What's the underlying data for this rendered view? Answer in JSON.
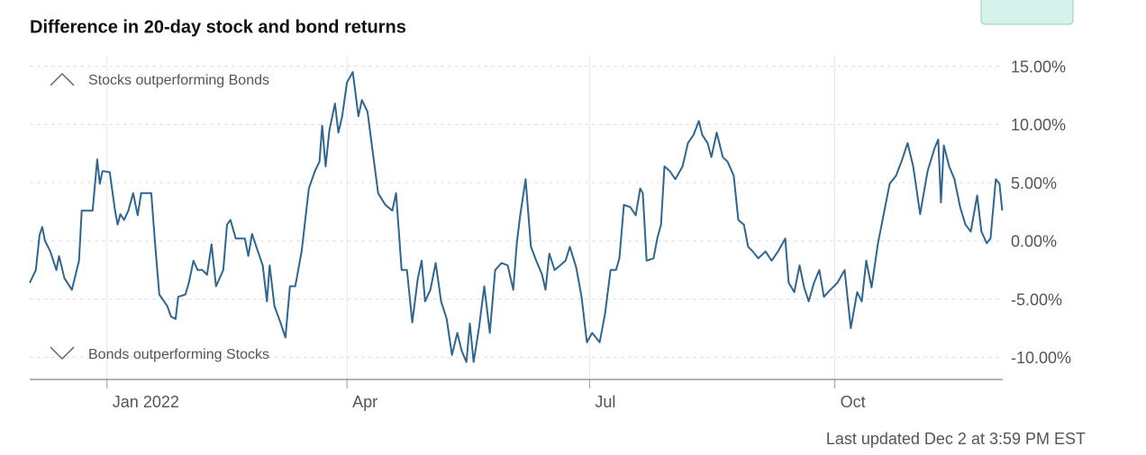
{
  "chart_data": {
    "type": "line",
    "title": "Difference in 20-day stock and bond returns",
    "annotations": [
      "Stocks outperforming Bonds",
      "Bonds outperforming Stocks"
    ],
    "footer": "Last updated Dec 2 at 3:59 PM EST",
    "xlim": [
      -29,
      336
    ],
    "xticks": [
      {
        "value": 0,
        "label": "Jan 2022"
      },
      {
        "value": 90,
        "label": "Apr"
      },
      {
        "value": 181,
        "label": "Jul"
      },
      {
        "value": 273,
        "label": "Oct"
      }
    ],
    "ylim": [
      -11.9,
      15.9
    ],
    "yticks": [
      {
        "value": -10,
        "label": "-10.00%"
      },
      {
        "value": -5,
        "label": "-5.00%"
      },
      {
        "value": 0,
        "label": "0.00%"
      },
      {
        "value": 5,
        "label": "5.00%"
      },
      {
        "value": 10,
        "label": "10.00%"
      },
      {
        "value": 15,
        "label": "15.00%"
      }
    ],
    "grid": true,
    "color": "#2f6690",
    "x": [
      -29,
      -26.7,
      -25.3,
      -24.3,
      -23.3,
      -21.3,
      -19,
      -18,
      -16,
      -13.2,
      -10.5,
      -9.5,
      -5.4,
      -3.7,
      -2.7,
      -1.7,
      1,
      3,
      4,
      5,
      6.4,
      8,
      9.8,
      11.5,
      12.8,
      16.6,
      18,
      19.6,
      22.6,
      24,
      25.7,
      26.7,
      29.4,
      30.7,
      32.4,
      34,
      35.8,
      37.5,
      39.2,
      40.9,
      43.6,
      45,
      46.3,
      48.3,
      51.7,
      53,
      54.4,
      56,
      58.4,
      60,
      61,
      62.8,
      65.2,
      66.9,
      68.6,
      70.6,
      73,
      75.7,
      78,
      79.7,
      80.7,
      82,
      83.4,
      85.5,
      86.8,
      88.2,
      90,
      92.2,
      94.3,
      95.6,
      97.7,
      99.7,
      101.7,
      104.4,
      107,
      108.4,
      110.5,
      112.5,
      114.5,
      116.6,
      118,
      119.3,
      121.3,
      123.3,
      125.3,
      127.4,
      129.4,
      131.4,
      133,
      134.8,
      136.1,
      137.5,
      139.5,
      141.5,
      143.6,
      145.6,
      148,
      150.3,
      152.4,
      153.7,
      155,
      157,
      159,
      161,
      163.2,
      164.5,
      165.9,
      167.9,
      170,
      172,
      173.6,
      176,
      178,
      180,
      182,
      184.8,
      186.8,
      188.9,
      190.9,
      192.2,
      193.9,
      196.3,
      198.3,
      200,
      201,
      202.4,
      205,
      206.4,
      207.8,
      209.1,
      211.1,
      213.2,
      215.9,
      217.9,
      220,
      222,
      223.3,
      225.3,
      226.7,
      228.7,
      231,
      232.8,
      235.1,
      236.8,
      238.9,
      240.5,
      242.2,
      244.3,
      247,
      249.3,
      251.7,
      254.4,
      255.7,
      257.8,
      259.8,
      261.5,
      263.2,
      265.2,
      267.2,
      268.9,
      271.3,
      274,
      276.7,
      279,
      281.4,
      283.1,
      284.8,
      286.8,
      289.2,
      290.9,
      293.6,
      296,
      298.3,
      300.3,
      302.4,
      305,
      307.8,
      310.5,
      311.8,
      312.8,
      313.9,
      315.9,
      317.9,
      320,
      322,
      324,
      326.4,
      328,
      330,
      331.4,
      333.4,
      334.8,
      335.8
    ],
    "values": [
      -3.6,
      -2.5,
      0.5,
      1.2,
      0,
      -0.9,
      -2.5,
      -1.3,
      -3.2,
      -4.2,
      -1.7,
      2.6,
      2.6,
      7,
      4.9,
      6,
      5.9,
      2.6,
      1.4,
      2.3,
      1.8,
      2.6,
      4.1,
      2.2,
      4.1,
      4.1,
      -0.2,
      -4.6,
      -5.6,
      -6.5,
      -6.7,
      -4.8,
      -4.6,
      -3.6,
      -1.7,
      -2.5,
      -2.5,
      -2.9,
      -0.3,
      -3.9,
      -2.5,
      1.4,
      1.8,
      0.2,
      0.2,
      -1.3,
      0.6,
      -0.5,
      -2.1,
      -5.2,
      -2.1,
      -5.6,
      -7.1,
      -8.3,
      -3.9,
      -3.9,
      -0.9,
      4.5,
      6,
      6.8,
      9.9,
      6.4,
      9.5,
      11.8,
      9.3,
      10.7,
      13.6,
      14.5,
      10.7,
      12.1,
      11.1,
      7.6,
      4.1,
      3.1,
      2.6,
      4.1,
      -2.5,
      -2.5,
      -7,
      -3.2,
      -1.7,
      -5.2,
      -4.2,
      -1.9,
      -5.2,
      -6.7,
      -9.8,
      -7.9,
      -9.4,
      -10.4,
      -7.1,
      -10.4,
      -7.5,
      -3.9,
      -7.9,
      -2.5,
      -1.9,
      -2.1,
      -4.2,
      -0.2,
      2.2,
      5.3,
      -0.5,
      -1.7,
      -2.9,
      -4.2,
      -1.1,
      -2.5,
      -2.1,
      -1.7,
      -0.5,
      -2.3,
      -4.8,
      -8.7,
      -7.9,
      -8.7,
      -6.3,
      -2.5,
      -2.5,
      -1.5,
      3.1,
      2.9,
      2.2,
      4.5,
      4.1,
      -1.7,
      -1.5,
      0.2,
      1.4,
      6.4,
      6,
      5.3,
      6.4,
      8.4,
      9.1,
      10.3,
      9.1,
      8.4,
      7.2,
      9.3,
      7.2,
      6.8,
      5.6,
      1.8,
      1.4,
      -0.5,
      -0.9,
      -1.5,
      -0.9,
      -1.7,
      -0.9,
      0.2,
      -3.6,
      -4.4,
      -2.1,
      -4,
      -5.2,
      -3.6,
      -2.5,
      -4.8,
      -4.2,
      -3.6,
      -2.5,
      -7.5,
      -4.4,
      -5.2,
      -1.7,
      -4,
      -0.2,
      1.8,
      4.9,
      5.6,
      7,
      8.4,
      6.4,
      2.3,
      6,
      8,
      8.7,
      3.3,
      8.2,
      6.4,
      5.3,
      2.9,
      1.4,
      0.8,
      3.9,
      0.8,
      -0.2,
      0.2,
      5.3,
      4.9,
      2.6
    ]
  }
}
